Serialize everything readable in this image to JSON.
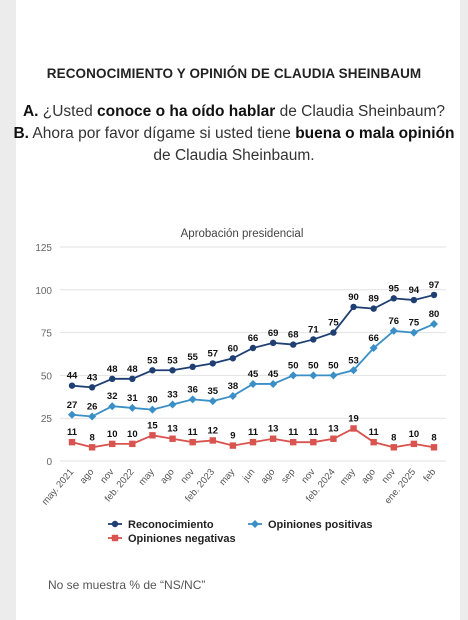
{
  "header": {
    "title": "RECONOCIMIENTO Y OPINIÓN DE CLAUDIA SHEINBAUM",
    "qa_prefix": "A.",
    "qa_before": " ¿Usted ",
    "qa_bold": "conoce o ha oído hablar",
    "qa_after": " de Claudia Sheinbaum?",
    "qb_prefix": "B.",
    "qb_before": " Ahora por favor dígame si usted tiene ",
    "qb_bold": "buena o mala opinión",
    "qb_line2": "de Claudia Sheinbaum."
  },
  "footnote": "No se muestra % de “NS/NC”",
  "chart_data": {
    "type": "line",
    "title": "Aprobación presidencial",
    "xlabel": "",
    "ylabel": "",
    "ylim": [
      0,
      125
    ],
    "yticks": [
      0,
      25,
      50,
      75,
      100,
      125
    ],
    "grid": true,
    "legend_position": "bottom",
    "categories": [
      "may. 2021",
      "ago",
      "nov",
      "feb. 2022",
      "may",
      "ago",
      "nov",
      "feb. 2023",
      "may",
      "jun",
      "ago",
      "sep",
      "nov",
      "feb. 2024",
      "may",
      "ago",
      "nov",
      "ene. 2025",
      "feb"
    ],
    "tick_labels": [
      "may. 2021",
      "ago",
      "nov",
      "feb. 2022",
      "may",
      "ago",
      "nov",
      "feb. 2023",
      "may",
      "jun",
      "ago",
      "sep",
      "nov",
      "feb. 2024",
      "may",
      "ago",
      "nov",
      "ene. 2025",
      "feb"
    ],
    "series": [
      {
        "name": "Reconocimiento",
        "color": "#1f3f73",
        "marker": "circle",
        "values": [
          44,
          43,
          48,
          48,
          53,
          53,
          55,
          57,
          60,
          66,
          69,
          68,
          71,
          75,
          90,
          89,
          95,
          94,
          97
        ]
      },
      {
        "name": "Opiniones positivas",
        "color": "#3a8fc7",
        "marker": "diamond",
        "values": [
          27,
          26,
          32,
          31,
          30,
          33,
          36,
          35,
          38,
          45,
          45,
          50,
          50,
          50,
          53,
          66,
          76,
          75,
          80
        ]
      },
      {
        "name": "Opiniones negativas",
        "color": "#d9534f",
        "marker": "square",
        "values": [
          11,
          8,
          10,
          10,
          15,
          13,
          11,
          12,
          9,
          11,
          13,
          11,
          11,
          13,
          19,
          11,
          8,
          10,
          8
        ]
      }
    ]
  }
}
